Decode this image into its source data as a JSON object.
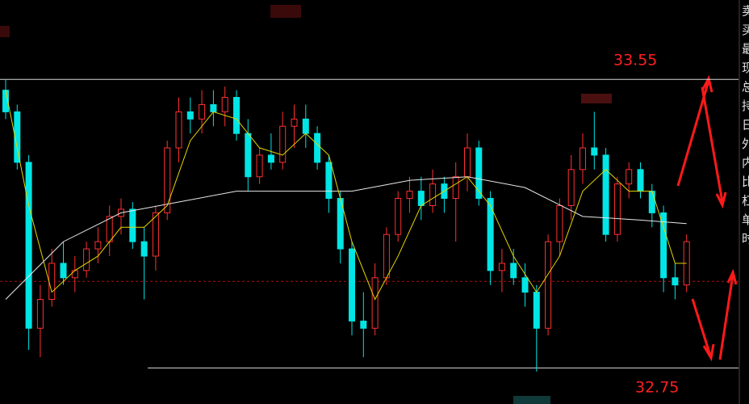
{
  "chart_data": {
    "type": "candlestick",
    "ylim": [
      32.65,
      33.77
    ],
    "up_color": "#ff3030",
    "down_color": "#00e5e5",
    "candles": [
      [
        33.52,
        33.55,
        33.44,
        33.46
      ],
      [
        33.46,
        33.48,
        33.3,
        33.32
      ],
      [
        33.32,
        33.34,
        32.8,
        32.86
      ],
      [
        32.86,
        32.98,
        32.78,
        32.94
      ],
      [
        32.94,
        33.08,
        32.92,
        33.04
      ],
      [
        33.04,
        33.1,
        32.98,
        33.0
      ],
      [
        33.0,
        33.06,
        32.96,
        33.02
      ],
      [
        33.02,
        33.1,
        33.0,
        33.08
      ],
      [
        33.08,
        33.14,
        33.04,
        33.1
      ],
      [
        33.1,
        33.2,
        33.06,
        33.17
      ],
      [
        33.17,
        33.22,
        33.12,
        33.19
      ],
      [
        33.19,
        33.21,
        33.08,
        33.1
      ],
      [
        33.1,
        33.14,
        32.94,
        33.06
      ],
      [
        33.06,
        33.2,
        33.02,
        33.18
      ],
      [
        33.18,
        33.38,
        33.16,
        33.36
      ],
      [
        33.36,
        33.5,
        33.32,
        33.46
      ],
      [
        33.46,
        33.5,
        33.4,
        33.44
      ],
      [
        33.44,
        33.52,
        33.4,
        33.48
      ],
      [
        33.48,
        33.52,
        33.42,
        33.46
      ],
      [
        33.46,
        33.53,
        33.42,
        33.5
      ],
      [
        33.5,
        33.52,
        33.38,
        33.4
      ],
      [
        33.4,
        33.44,
        33.24,
        33.28
      ],
      [
        33.28,
        33.36,
        33.26,
        33.34
      ],
      [
        33.34,
        33.4,
        33.3,
        33.32
      ],
      [
        33.32,
        33.46,
        33.3,
        33.42
      ],
      [
        33.42,
        33.48,
        33.36,
        33.44
      ],
      [
        33.44,
        33.48,
        33.36,
        33.4
      ],
      [
        33.4,
        33.42,
        33.3,
        33.32
      ],
      [
        33.32,
        33.34,
        33.18,
        33.22
      ],
      [
        33.22,
        33.24,
        33.04,
        33.08
      ],
      [
        33.08,
        33.1,
        32.84,
        32.88
      ],
      [
        32.88,
        32.96,
        32.78,
        32.86
      ],
      [
        32.86,
        33.04,
        32.84,
        33.0
      ],
      [
        33.0,
        33.14,
        32.98,
        33.12
      ],
      [
        33.12,
        33.24,
        33.1,
        33.22
      ],
      [
        33.22,
        33.28,
        33.18,
        33.24
      ],
      [
        33.24,
        33.28,
        33.16,
        33.2
      ],
      [
        33.2,
        33.3,
        33.18,
        33.26
      ],
      [
        33.26,
        33.28,
        33.18,
        33.22
      ],
      [
        33.22,
        33.32,
        33.1,
        33.28
      ],
      [
        33.28,
        33.4,
        33.24,
        33.36
      ],
      [
        33.36,
        33.38,
        33.2,
        33.22
      ],
      [
        33.22,
        33.24,
        32.98,
        33.02
      ],
      [
        33.02,
        33.08,
        32.96,
        33.04
      ],
      [
        33.04,
        33.08,
        32.98,
        33.0
      ],
      [
        33.0,
        33.04,
        32.92,
        32.96
      ],
      [
        32.96,
        32.98,
        32.74,
        32.86
      ],
      [
        32.86,
        33.12,
        32.84,
        33.1
      ],
      [
        33.1,
        33.22,
        33.06,
        33.2
      ],
      [
        33.2,
        33.34,
        33.16,
        33.3
      ],
      [
        33.3,
        33.4,
        33.26,
        33.36
      ],
      [
        33.36,
        33.46,
        33.3,
        33.34
      ],
      [
        33.34,
        33.36,
        33.1,
        33.12
      ],
      [
        33.12,
        33.28,
        33.1,
        33.26
      ],
      [
        33.26,
        33.32,
        33.22,
        33.3
      ],
      [
        33.3,
        33.32,
        33.22,
        33.24
      ],
      [
        33.24,
        33.26,
        33.14,
        33.18
      ],
      [
        33.18,
        33.2,
        32.96,
        33.0
      ],
      [
        33.0,
        33.04,
        32.94,
        32.98
      ],
      [
        32.98,
        33.12,
        32.96,
        33.1
      ]
    ],
    "series": [
      {
        "color": "#e8e8e8",
        "x": [
          0,
          5,
          10,
          15,
          20,
          25,
          30,
          35,
          40,
          45,
          50,
          55,
          59
        ],
        "values": [
          32.94,
          33.1,
          33.18,
          33.21,
          33.24,
          33.24,
          33.24,
          33.27,
          33.28,
          33.25,
          33.17,
          33.16,
          33.15
        ]
      },
      {
        "color": "#e6d600",
        "x": [
          0,
          2,
          4,
          6,
          8,
          10,
          12,
          14,
          16,
          18,
          20,
          22,
          24,
          26,
          28,
          30,
          32,
          34,
          36,
          38,
          40,
          42,
          44,
          46,
          48,
          50,
          52,
          54,
          56,
          58,
          59
        ],
        "values": [
          33.52,
          33.2,
          32.96,
          33.02,
          33.06,
          33.14,
          33.14,
          33.2,
          33.38,
          33.46,
          33.44,
          33.36,
          33.34,
          33.4,
          33.34,
          33.1,
          32.94,
          33.06,
          33.2,
          33.24,
          33.28,
          33.2,
          33.06,
          32.96,
          33.06,
          33.24,
          33.3,
          33.24,
          33.24,
          33.04,
          33.04
        ]
      }
    ],
    "levels": [
      33.55,
      32.75
    ],
    "dashed_level": 32.99,
    "side_labels": [
      "卖",
      "买",
      "最",
      "现",
      "总",
      "持",
      "日",
      "外",
      "内",
      "比",
      "杠",
      "单",
      "时"
    ]
  }
}
